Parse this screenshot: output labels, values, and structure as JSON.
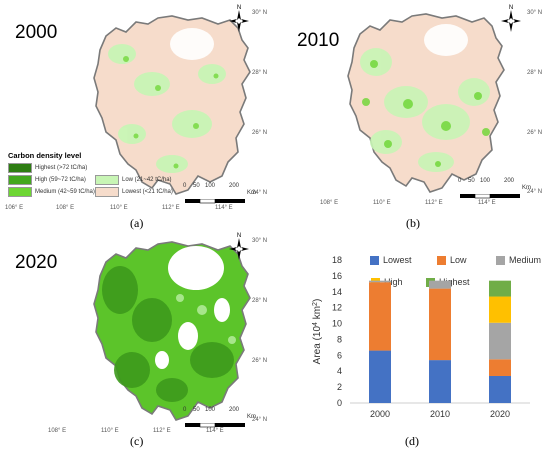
{
  "panels": {
    "a": {
      "year": "2000",
      "caption": "(a)"
    },
    "b": {
      "year": "2010",
      "caption": "(b)"
    },
    "c": {
      "year": "2020",
      "caption": "(c)"
    },
    "d": {
      "caption": "(d)"
    }
  },
  "lon_ticks": [
    "106° E",
    "108° E",
    "110° E",
    "112° E",
    "114° E"
  ],
  "lon_ticks_short": [
    "108° E",
    "110° E",
    "112° E",
    "114° E"
  ],
  "lat_ticks": [
    "30° N",
    "28° N",
    "26° N",
    "24° N"
  ],
  "north_label": "N",
  "scale": {
    "labels": [
      "0",
      "50",
      "100",
      "200"
    ],
    "unit": "Km"
  },
  "legend": {
    "title": "Carbon density level",
    "items": [
      {
        "label": "Highest (>72 tC/ha)",
        "color": "#2e7d12"
      },
      {
        "label": "High (59~72 tC/ha)",
        "color": "#43a81e"
      },
      {
        "label": "Medium (42~59 tC/ha)",
        "color": "#6dd633"
      },
      {
        "label": "Low (21~42 tC/ha)",
        "color": "#c8f5b5"
      },
      {
        "label": "Lowest (<21 tC/ha)",
        "color": "#f6dccb"
      }
    ]
  },
  "colors": {
    "outline": "#7a7a7a",
    "lowest": "#f6dccb",
    "low": "#c8f5b5",
    "forest_dark": "#3d9a1c",
    "forest_mid": "#5cc42a"
  },
  "chart_data": {
    "type": "bar",
    "stacked": true,
    "categories": [
      "2000",
      "2010",
      "2020"
    ],
    "ylabel": "Area (10⁴ km²)",
    "ylabel_main": "Area (10",
    "ylabel_sup1": "4",
    "ylabel_mid": " km",
    "ylabel_sup2": "2",
    "ylabel_end": ")",
    "ylim": [
      0,
      18
    ],
    "yticks": [
      0,
      2,
      4,
      6,
      8,
      10,
      12,
      14,
      16,
      18
    ],
    "legend_position": "top",
    "series": [
      {
        "name": "Lowest",
        "color": "#4472c4",
        "values": [
          6.6,
          5.4,
          3.4
        ]
      },
      {
        "name": "Low",
        "color": "#ed7d31",
        "values": [
          8.6,
          9.0,
          2.1
        ]
      },
      {
        "name": "Medium",
        "color": "#a5a5a5",
        "values": [
          0.2,
          1.0,
          4.6
        ]
      },
      {
        "name": "High",
        "color": "#ffc000",
        "values": [
          0.0,
          0.0,
          3.3
        ]
      },
      {
        "name": "Highest",
        "color": "#70ad47",
        "values": [
          0.0,
          0.0,
          2.0
        ]
      }
    ]
  }
}
